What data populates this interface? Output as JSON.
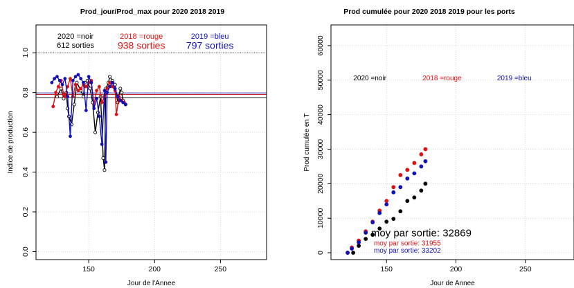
{
  "chart_data": [
    {
      "type": "line",
      "title": "Prod_jour/Prod_max pour 2020 2018 2019",
      "xlabel": "Jour de l'Annee",
      "ylabel": "Indice de production",
      "xlim": [
        110,
        285
      ],
      "ylim": [
        -0.04,
        1.14
      ],
      "x_ticks": [
        150,
        200,
        250
      ],
      "x_tick_labels": [
        "150",
        "200",
        "250"
      ],
      "y_ticks": [
        0,
        0.2,
        0.4,
        0.6,
        0.8,
        1.0
      ],
      "y_tick_labels": [
        "0.0",
        "0.2",
        "0.4",
        "0.6",
        "0.8",
        "1.0"
      ],
      "grid": true,
      "reference_lines": [
        {
          "y": 1.0,
          "color": "#333333",
          "style": "dotted"
        },
        {
          "y": 0.798,
          "color": "#2222aa",
          "style": "solid"
        },
        {
          "y": 0.79,
          "color": "#cc2222",
          "style": "solid"
        },
        {
          "y": 0.775,
          "color": "#333333",
          "style": "solid"
        }
      ],
      "annotations": [
        {
          "text": "2020 =noir",
          "x": 140,
          "y": 1.07,
          "color": "#000000",
          "size": 11
        },
        {
          "text": "612 sorties",
          "x": 140,
          "y": 1.025,
          "color": "#000000",
          "size": 11
        },
        {
          "text": "2018 =rouge",
          "x": 190,
          "y": 1.07,
          "color": "#dd1111",
          "size": 11
        },
        {
          "text": "938 sorties",
          "x": 190,
          "y": 1.02,
          "color": "#dd1111",
          "size": 14
        },
        {
          "text": "2019 =bleu",
          "x": 242,
          "y": 1.07,
          "color": "#1111bb",
          "size": 11
        },
        {
          "text": "797 sorties",
          "x": 242,
          "y": 1.02,
          "color": "#1111bb",
          "size": 14
        }
      ],
      "series": [
        {
          "color": "#000000",
          "marker": "open",
          "x": [
            126,
            129,
            131,
            133,
            134,
            135,
            137,
            139,
            141,
            144,
            146,
            147,
            149,
            151,
            153,
            155,
            157,
            159,
            161,
            162,
            163,
            165,
            166,
            168,
            170,
            172,
            174,
            175,
            176,
            178
          ],
          "y": [
            0.78,
            0.82,
            0.77,
            0.8,
            0.72,
            0.68,
            0.64,
            0.74,
            0.85,
            0.81,
            0.78,
            0.85,
            0.86,
            0.82,
            0.75,
            0.6,
            0.7,
            0.78,
            0.47,
            0.41,
            0.82,
            0.85,
            0.88,
            0.86,
            0.84,
            0.75,
            0.82,
            0.8,
            0.76,
            0.74
          ]
        },
        {
          "color": "#dd1111",
          "marker": "filled",
          "x": [
            123,
            125,
            127,
            129,
            131,
            132,
            134,
            136,
            138,
            140,
            142,
            144,
            146,
            148,
            150,
            152,
            154,
            156,
            158,
            160,
            162,
            164,
            166,
            168,
            170,
            171,
            173,
            175,
            177
          ],
          "y": [
            0.73,
            0.8,
            0.83,
            0.86,
            0.79,
            0.78,
            0.83,
            0.87,
            0.78,
            0.84,
            0.81,
            0.82,
            0.84,
            0.83,
            0.85,
            0.86,
            0.74,
            0.81,
            0.83,
            0.75,
            0.78,
            0.82,
            0.85,
            0.83,
            0.81,
            0.69,
            0.78,
            0.76,
            0.75
          ]
        },
        {
          "color": "#1111bb",
          "marker": "filled",
          "x": [
            122,
            124,
            126,
            128,
            130,
            132,
            134,
            136,
            138,
            140,
            142,
            144,
            146,
            148,
            150,
            152,
            154,
            156,
            158,
            160,
            162,
            163,
            164,
            166,
            168,
            170,
            172,
            174,
            176,
            178
          ],
          "y": [
            0.85,
            0.87,
            0.88,
            0.86,
            0.84,
            0.87,
            0.78,
            0.58,
            0.86,
            0.88,
            0.89,
            0.87,
            0.85,
            0.71,
            0.88,
            0.85,
            0.72,
            0.77,
            0.68,
            0.54,
            0.81,
            0.45,
            0.8,
            0.83,
            0.85,
            0.82,
            0.78,
            0.76,
            0.75,
            0.74
          ]
        }
      ]
    },
    {
      "type": "scatter",
      "title": "Prod cumulée pour 2020 2018 2019 pour les ports",
      "xlabel": "Jour de Annee",
      "ylabel": "Prod cumulée en T",
      "xlim": [
        110,
        285
      ],
      "ylim": [
        -2000,
        66000
      ],
      "x_ticks": [
        150,
        200,
        250
      ],
      "x_tick_labels": [
        "150",
        "200",
        "250"
      ],
      "y_ticks": [
        0,
        10000,
        20000,
        30000,
        40000,
        50000,
        60000
      ],
      "y_tick_labels": [
        "0",
        "10000",
        "20000",
        "30000",
        "40000",
        "50000",
        "60000"
      ],
      "grid": true,
      "annotations": [
        {
          "text": "2020 =noir",
          "x": 138,
          "y": 50000,
          "color": "#000000",
          "size": 10
        },
        {
          "text": "2018 =rouge",
          "x": 190,
          "y": 50000,
          "color": "#dd1111",
          "size": 10
        },
        {
          "text": "2019 =bleu",
          "x": 242,
          "y": 50000,
          "color": "#1111bb",
          "size": 10
        },
        {
          "text": "moy par sortie: 32869",
          "x": 175,
          "y": 4700,
          "color": "#000000",
          "size": 15
        },
        {
          "text": "moy par sortie: 31955",
          "x": 165,
          "y": 2100,
          "color": "#dd1111",
          "size": 10
        },
        {
          "text": "moy par sortie: 33202",
          "x": 165,
          "y": 0,
          "color": "#1111bb",
          "size": 10
        }
      ],
      "series": [
        {
          "color": "#000000",
          "x": [
            126,
            130,
            135,
            140,
            145,
            150,
            155,
            160,
            165,
            170,
            175,
            178
          ],
          "y": [
            0,
            2000,
            4000,
            5200,
            7000,
            9000,
            9800,
            12000,
            15000,
            16000,
            18000,
            20000
          ]
        },
        {
          "color": "#dd1111",
          "x": [
            122,
            125,
            130,
            135,
            140,
            145,
            150,
            155,
            160,
            165,
            170,
            175,
            178
          ],
          "y": [
            0,
            1500,
            3500,
            6200,
            9000,
            12200,
            15000,
            19000,
            22500,
            24000,
            26000,
            28500,
            30000
          ]
        },
        {
          "color": "#1111bb",
          "x": [
            122,
            125,
            130,
            135,
            140,
            145,
            150,
            155,
            160,
            165,
            170,
            175,
            178
          ],
          "y": [
            0,
            1200,
            3000,
            5800,
            8800,
            11500,
            14000,
            17500,
            19000,
            21500,
            23000,
            25000,
            26500
          ]
        }
      ]
    }
  ]
}
